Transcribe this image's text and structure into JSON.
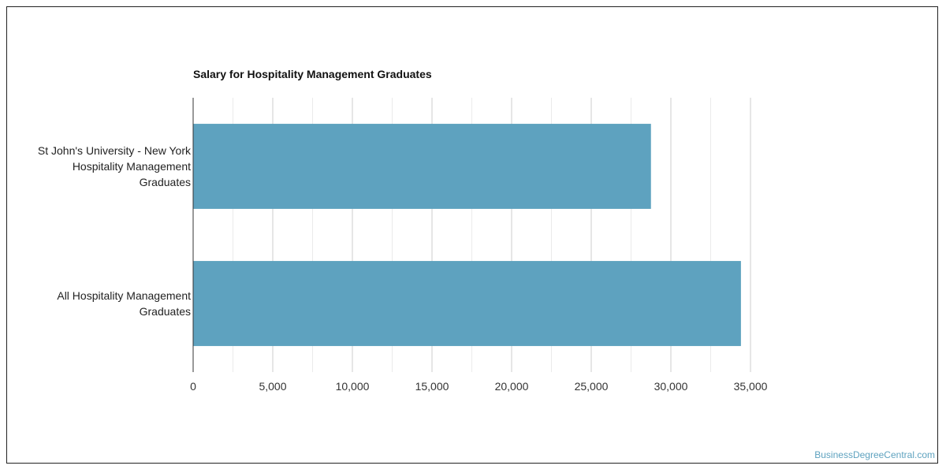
{
  "chart_data": {
    "type": "bar",
    "orientation": "horizontal",
    "title": "Salary for Hospitality Management Graduates",
    "categories": [
      [
        "St John's University - New York",
        "Hospitality Management",
        "Graduates"
      ],
      [
        "All Hospitality Management",
        "Graduates"
      ]
    ],
    "values": [
      28750,
      34400
    ],
    "xlabel": "",
    "ylabel": "",
    "xlim": [
      0,
      35000
    ],
    "xticks": [
      0,
      5000,
      10000,
      15000,
      20000,
      25000,
      30000,
      35000
    ],
    "xtick_labels": [
      "0",
      "5,000",
      "10,000",
      "15,000",
      "20,000",
      "25,000",
      "30,000",
      "35,000"
    ],
    "grid": true,
    "bar_color": "#5ea2bf"
  },
  "watermark": "BusinessDegreeCentral.com"
}
